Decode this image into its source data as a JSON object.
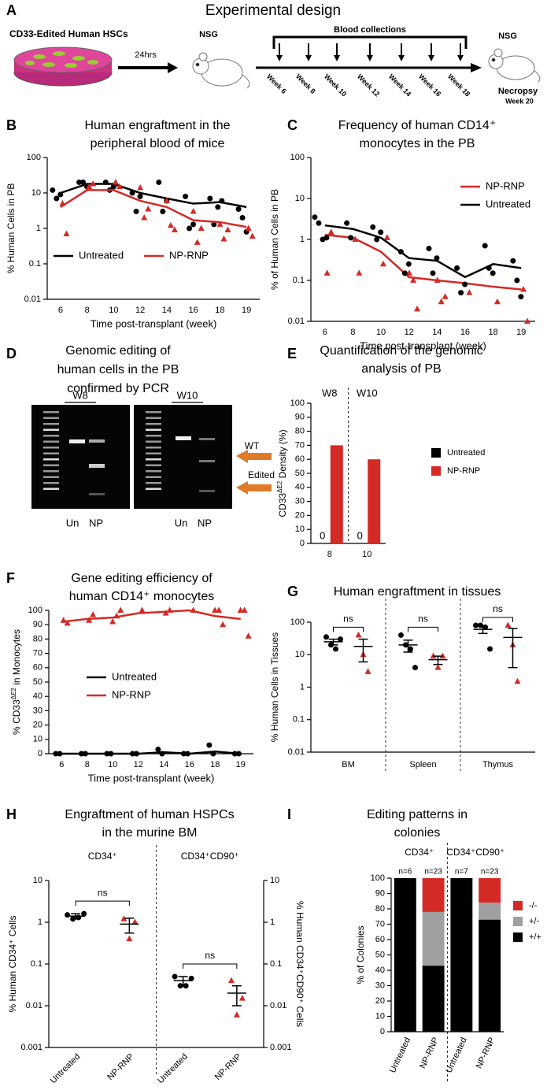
{
  "design": {
    "panel": "A",
    "title": "Experimental design",
    "cells_label": "CD33-Edited Human HSCs",
    "interval": "24hrs",
    "start_model": "NSG",
    "collections": "Blood collections",
    "weeks": [
      "Week 6",
      "Week 8",
      "Week 10",
      "Week 12",
      "Week 14",
      "Week 16",
      "Week 18"
    ],
    "end_model": "NSG",
    "endpoint": "Necropsy",
    "end_week": "Week 20"
  },
  "gel": {
    "panel": "D",
    "title": [
      "Genomic editing of",
      "human cells in the PB",
      "confirmed by PCR"
    ],
    "timepoints": [
      "W8",
      "W10"
    ],
    "lanes": [
      "Un",
      "NP",
      "Un",
      "NP"
    ],
    "bands": [
      "WT",
      "Edited"
    ]
  },
  "chart_data": [
    {
      "type": "line",
      "panel": "B",
      "title": [
        "Human engraftment in the",
        "peripheral blood of mice"
      ],
      "xlabel": "Time post-transplant (week)",
      "ylabel": "% Human Cells in PB",
      "categories": [
        "6",
        "8",
        "10",
        "12",
        "14",
        "16",
        "18",
        "19"
      ],
      "log_scale": true,
      "ylim": [
        0.01,
        100
      ],
      "yticks": [
        0.01,
        0.1,
        1,
        10,
        100
      ],
      "legend": "bottom",
      "series": [
        {
          "name": "Untreated",
          "color": "#000000",
          "marker": "circle",
          "values": [
            10,
            18,
            18,
            10,
            7,
            5,
            5.5,
            4
          ],
          "point_x": [
            "6",
            "6",
            "6",
            "8",
            "8",
            "8",
            "10",
            "10",
            "10",
            "12",
            "12",
            "12",
            "14",
            "14",
            "14",
            "16",
            "16",
            "16",
            "18",
            "18",
            "18",
            "18",
            "19",
            "19",
            "19"
          ],
          "point_y": [
            12,
            7,
            9,
            20,
            20,
            15,
            20,
            12,
            15,
            10,
            3,
            8,
            20,
            3,
            6,
            8,
            1,
            1.3,
            7,
            1.3,
            4,
            6,
            3.5,
            2,
            0.8
          ]
        },
        {
          "name": "NP-RNP",
          "color": "#d42a25",
          "marker": "triangle",
          "values": [
            4,
            12,
            12,
            6,
            4,
            1.7,
            1.5,
            1.1
          ],
          "point_x": [
            "6",
            "6",
            "8",
            "8",
            "10",
            "10",
            "12",
            "12",
            "12",
            "14",
            "14",
            "14",
            "16",
            "16",
            "16",
            "18",
            "18",
            "18",
            "19",
            "19"
          ],
          "point_y": [
            5,
            0.7,
            15,
            18,
            20,
            15,
            14,
            2,
            3.5,
            6,
            1.2,
            0.9,
            3,
            0.4,
            1,
            1.3,
            0.5,
            0.9,
            1,
            0.6
          ]
        }
      ]
    },
    {
      "type": "line",
      "panel": "C",
      "title": [
        "Frequency of human CD14⁺",
        "monocytes in the PB"
      ],
      "xlabel": "Time post-transplant (week)",
      "ylabel": "% of Human Cells in PB",
      "categories": [
        "6",
        "8",
        "10",
        "12",
        "14",
        "16",
        "18",
        "19"
      ],
      "log_scale": true,
      "ylim": [
        0.01,
        100
      ],
      "yticks": [
        0.01,
        0.1,
        1,
        10,
        100
      ],
      "legend": "upper right",
      "series": [
        {
          "name": "NP-RNP",
          "color": "#d42a25",
          "marker": "triangle",
          "values": [
            1.3,
            1.1,
            0.5,
            0.12,
            0.1,
            0.085,
            0.07,
            0.06
          ],
          "point_x": [
            "6",
            "6",
            "8",
            "8",
            "10",
            "10",
            "12",
            "12",
            "12",
            "14",
            "14",
            "14",
            "16",
            "18",
            "19",
            "19"
          ],
          "point_y": [
            0.15,
            1.5,
            1,
            0.15,
            0.25,
            1.1,
            0.15,
            0.1,
            0.02,
            0.1,
            0.03,
            0.04,
            0.05,
            0.03,
            0.06,
            0.01
          ]
        },
        {
          "name": "Untreated",
          "color": "#000000",
          "marker": "circle",
          "values": [
            2.2,
            1.8,
            1.1,
            0.35,
            0.3,
            0.12,
            0.25,
            0.2
          ],
          "point_x": [
            "6",
            "6",
            "6",
            "6",
            "8",
            "8",
            "10",
            "10",
            "10",
            "12",
            "12",
            "12",
            "14",
            "14",
            "14",
            "16",
            "16",
            "16",
            "18",
            "18",
            "18",
            "19",
            "19",
            "19"
          ],
          "point_y": [
            3.5,
            2.5,
            1,
            1.1,
            2.5,
            1.1,
            2,
            1,
            1.5,
            0.5,
            0.15,
            0.25,
            0.6,
            0.15,
            0.35,
            0.2,
            0.05,
            0.08,
            0.7,
            0.2,
            0.15,
            0.3,
            0.1,
            0.04
          ]
        }
      ]
    },
    {
      "type": "bar",
      "panel": "E",
      "title": [
        "Quantification of the genomic",
        "analysis of PB"
      ],
      "ylabel": [
        "CD33",
        "ΔE2",
        " Density (%)"
      ],
      "groups": [
        "W8",
        "W10"
      ],
      "categories": [
        "8",
        "10"
      ],
      "ylim": [
        0,
        100
      ],
      "yticks": [
        0,
        10,
        20,
        30,
        40,
        50,
        60,
        70,
        80,
        90,
        100
      ],
      "legend": "right",
      "series": [
        {
          "name": "Untreated",
          "color": "#000000",
          "values": [
            0,
            0
          ]
        },
        {
          "name": "NP-RNP",
          "color": "#d42a25",
          "values": [
            70,
            60
          ]
        }
      ]
    },
    {
      "type": "line",
      "panel": "F",
      "title": [
        "Gene editing efficiency of",
        "human CD14⁺ monocytes"
      ],
      "xlabel": "Time post-transplant (week)",
      "ylabel": [
        "% CD33",
        "ΔE2",
        " in Monocytes"
      ],
      "categories": [
        "6",
        "8",
        "10",
        "12",
        "14",
        "16",
        "18",
        "19"
      ],
      "ylim": [
        0,
        100
      ],
      "yticks": [
        0,
        10,
        20,
        30,
        40,
        50,
        60,
        70,
        80,
        90,
        100
      ],
      "legend": "center",
      "series": [
        {
          "name": "Untreated",
          "color": "#000000",
          "marker": "circle",
          "values": [
            0,
            0,
            0,
            0,
            1,
            0,
            1.5,
            0
          ],
          "point_x": [
            "6",
            "6",
            "8",
            "8",
            "10",
            "10",
            "12",
            "12",
            "14",
            "14",
            "16",
            "16",
            "18",
            "18",
            "19",
            "19"
          ],
          "point_y": [
            0,
            0,
            0,
            0,
            0,
            0,
            0,
            0,
            3,
            0,
            0,
            0,
            6,
            0,
            0,
            0
          ]
        },
        {
          "name": "NP-RNP",
          "color": "#d42a25",
          "marker": "triangle",
          "values": [
            92,
            94,
            95,
            98,
            99,
            100,
            96,
            94
          ],
          "point_x": [
            "6",
            "6",
            "8",
            "8",
            "10",
            "10",
            "10",
            "12",
            "14",
            "14",
            "16",
            "18",
            "18",
            "18",
            "19",
            "19",
            "19"
          ],
          "point_y": [
            93,
            91,
            93,
            97,
            92,
            96,
            100,
            100,
            98,
            100,
            100,
            100,
            100,
            90,
            100,
            100,
            82
          ]
        }
      ]
    },
    {
      "type": "dot",
      "panel": "G",
      "title": [
        "Human engraftment in tissues"
      ],
      "ylabel": "% Human Cells in Tissues",
      "categories": [
        "BM",
        "Spleen",
        "Thymus"
      ],
      "log_scale": true,
      "ylim": [
        0.01,
        100
      ],
      "yticks": [
        0.01,
        0.1,
        1,
        10,
        100
      ],
      "annotations": [
        "ns",
        "ns",
        "ns"
      ],
      "series": [
        {
          "color": "#000000",
          "marker": "circle",
          "points": [
            [
              35,
              20,
              15,
              30
            ],
            [
              40,
              20,
              15,
              4
            ],
            [
              80,
              80,
              70,
              15
            ]
          ],
          "mean": [
            25,
            20,
            60
          ],
          "sem": [
            5,
            8,
            15
          ]
        },
        {
          "color": "#d42a25",
          "marker": "triangle",
          "points": [
            [
              40,
              10,
              3
            ],
            [
              9,
              4,
              9
            ],
            [
              80,
              20,
              1.5
            ]
          ],
          "mean": [
            18,
            7,
            34
          ],
          "sem": [
            12,
            2,
            30
          ]
        }
      ]
    },
    {
      "type": "strip",
      "panel": "H",
      "title": [
        "Engraftment of human HSPCs",
        "in the murine BM"
      ],
      "ylabel": "% Human CD34⁺ Cells",
      "y2label": "% Human CD34⁺CD90⁺ Cells",
      "groups": [
        "CD34⁺",
        "CD34⁺CD90⁺"
      ],
      "categories": [
        "Untreated",
        "NP-RNP",
        "Untreated",
        "NP-RNP"
      ],
      "log_scale": true,
      "ylim": [
        0.001,
        10
      ],
      "yticks": [
        0.001,
        0.01,
        0.1,
        1,
        10
      ],
      "y2lim": [
        0.001,
        10
      ],
      "y2ticks": [
        0.001,
        0.01,
        0.1,
        1,
        10
      ],
      "annotations": [
        "ns",
        "ns"
      ],
      "series": [
        {
          "color": "#000000",
          "marker": "circle",
          "axis": "y",
          "points": [
            1.5,
            1.2,
            1.3,
            1.6
          ],
          "mean": 1.4,
          "sem": 0.2
        },
        {
          "color": "#d42a25",
          "marker": "triangle",
          "axis": "y",
          "points": [
            1.2,
            0.4,
            1.0
          ],
          "mean": 0.9,
          "sem": 0.35
        },
        {
          "color": "#000000",
          "marker": "circle",
          "axis": "y2",
          "points": [
            0.05,
            0.03,
            0.03,
            0.045
          ],
          "mean": 0.04,
          "sem": 0.01
        },
        {
          "color": "#d42a25",
          "marker": "triangle",
          "axis": "y2",
          "points": [
            0.04,
            0.006,
            0.015
          ],
          "mean": 0.02,
          "sem": 0.01
        }
      ]
    },
    {
      "type": "stacked_bar",
      "panel": "I",
      "title": [
        "Editing patterns in",
        "colonies"
      ],
      "ylabel": "% of Colonies",
      "groups": [
        "CD34⁺",
        "CD34⁺CD90⁺"
      ],
      "categories": [
        "Untreated",
        "NP-RNP",
        "Untreated",
        "NP-RNP"
      ],
      "annotations": [
        "n=6",
        "n=23",
        "n=7",
        "n=23"
      ],
      "ylim": [
        0,
        100
      ],
      "yticks": [
        0,
        10,
        20,
        30,
        40,
        50,
        60,
        70,
        80,
        90,
        100
      ],
      "legend": "right",
      "series": [
        {
          "name": "+/+",
          "color": "#000000",
          "values": [
            100,
            43,
            100,
            73
          ]
        },
        {
          "name": "+/-",
          "color": "#a0a0a0",
          "values": [
            0,
            35,
            0,
            11
          ]
        },
        {
          "name": "-/-",
          "color": "#d42a25",
          "values": [
            0,
            22,
            0,
            16
          ]
        }
      ]
    }
  ]
}
